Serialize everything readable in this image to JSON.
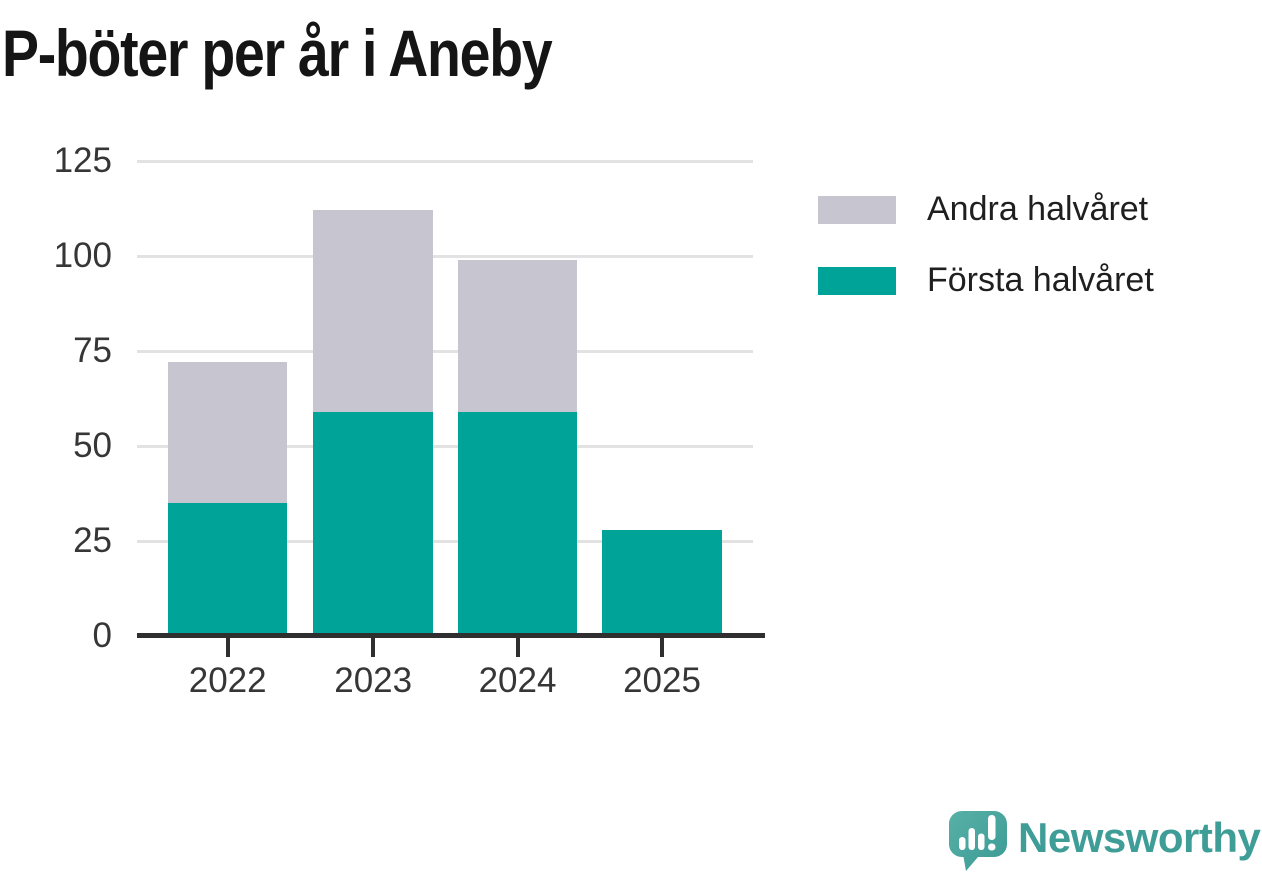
{
  "title": "P-böter per år i Aneby",
  "legend": {
    "items": [
      {
        "label": "Andra halvåret",
        "series": "andra-halvaret"
      },
      {
        "label": "Första halvåret",
        "series": "forsta-halvaret"
      }
    ]
  },
  "chart_data": {
    "type": "bar",
    "stacked": true,
    "title": "P-böter per år i Aneby",
    "categories": [
      "2022",
      "2023",
      "2024",
      "2025"
    ],
    "series": [
      {
        "name": "Första halvåret",
        "key": "forsta-halvaret",
        "color": "#00a398",
        "values": [
          35,
          59,
          59,
          28
        ]
      },
      {
        "name": "Andra halvåret",
        "key": "andra-halvaret",
        "color": "#c7c5d0",
        "values": [
          37,
          53,
          40,
          0
        ]
      }
    ],
    "totals": [
      72,
      112,
      99,
      28
    ],
    "xlabel": "",
    "ylabel": "",
    "ylim": [
      0,
      125
    ],
    "yticks": [
      0,
      25,
      50,
      75,
      100,
      125
    ],
    "grid": true,
    "legend_position": "top-right"
  },
  "branding": {
    "logo_text": "Newsworthy",
    "logo_color": "#3f9d97",
    "icon": "newsworthy-speech-bubble-chart-icon"
  },
  "colors": {
    "first_half": "#00a398",
    "second_half": "#c7c5d0",
    "gridline": "#e2e2e2",
    "axis": "#2f2f2f",
    "label_text": "#363636",
    "title_text": "#151515"
  }
}
